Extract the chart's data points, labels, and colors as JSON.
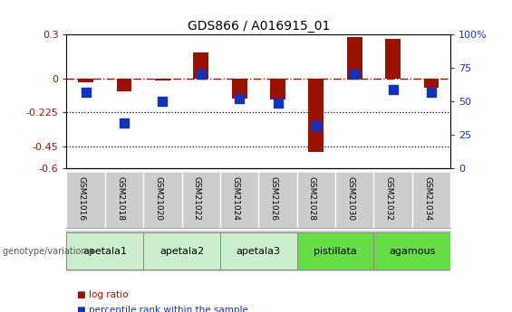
{
  "title": "GDS866 / A016915_01",
  "samples": [
    "GSM21016",
    "GSM21018",
    "GSM21020",
    "GSM21022",
    "GSM21024",
    "GSM21026",
    "GSM21028",
    "GSM21030",
    "GSM21032",
    "GSM21034"
  ],
  "log_ratio": [
    -0.02,
    -0.08,
    -0.01,
    0.18,
    -0.13,
    -0.14,
    -0.49,
    0.28,
    0.27,
    -0.06
  ],
  "percentile_rank": [
    57,
    34,
    50,
    70,
    52,
    49,
    32,
    70,
    59,
    57
  ],
  "groups": [
    {
      "label": "apetala1",
      "indices": [
        0,
        1
      ],
      "color": "#cceecc"
    },
    {
      "label": "apetala2",
      "indices": [
        2,
        3
      ],
      "color": "#cceecc"
    },
    {
      "label": "apetala3",
      "indices": [
        4,
        5
      ],
      "color": "#cceecc"
    },
    {
      "label": "pistillata",
      "indices": [
        6,
        7
      ],
      "color": "#66dd44"
    },
    {
      "label": "agamous",
      "indices": [
        8,
        9
      ],
      "color": "#66dd44"
    }
  ],
  "bar_color": "#991100",
  "dot_color": "#1133bb",
  "ylim": [
    -0.6,
    0.3
  ],
  "yticks_left": [
    0.3,
    0,
    -0.225,
    -0.45,
    -0.6
  ],
  "yticks_right_pct": [
    100,
    75,
    50,
    25,
    0
  ],
  "hline_zero": 0,
  "hline_dotted1": -0.225,
  "hline_dotted2": -0.45,
  "background_color": "#ffffff",
  "legend_log_ratio": "log ratio",
  "legend_percentile": "percentile rank within the sample",
  "genotype_label": "genotype/variation",
  "bar_width": 0.4,
  "dot_size": 45,
  "sample_label_fontsize": 6.5,
  "group_label_fontsize": 8,
  "axis_tick_fontsize": 8,
  "title_fontsize": 10
}
